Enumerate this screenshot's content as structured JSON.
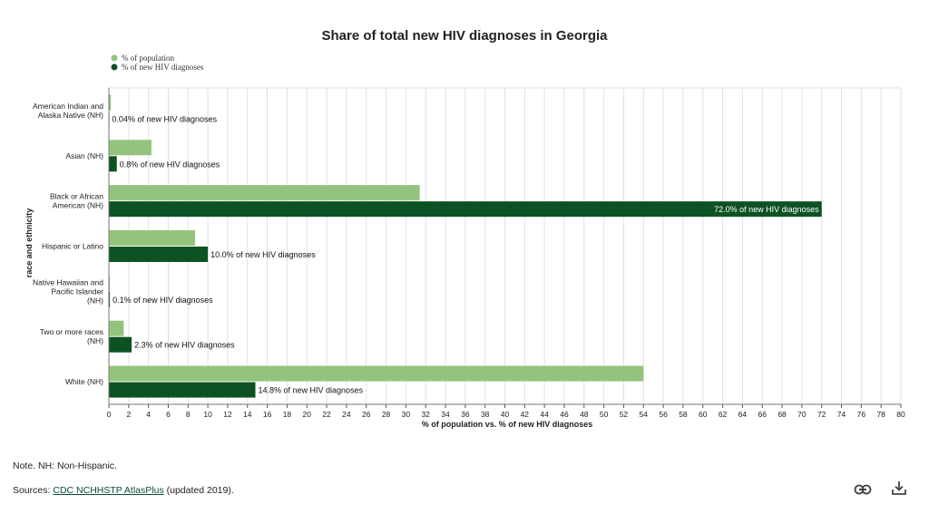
{
  "chart_data": {
    "type": "bar",
    "orientation": "horizontal",
    "title": "Share of total new HIV diagnoses in Georgia",
    "xlabel": "% of population vs. % of new HIV diagnoses",
    "ylabel": "race and ethnicity",
    "xlim": [
      0,
      80
    ],
    "xticks": [
      0,
      2,
      4,
      6,
      8,
      10,
      12,
      14,
      16,
      18,
      20,
      22,
      24,
      26,
      28,
      30,
      32,
      34,
      36,
      38,
      40,
      42,
      44,
      46,
      48,
      50,
      52,
      54,
      56,
      58,
      60,
      62,
      64,
      66,
      68,
      70,
      72,
      74,
      76,
      78,
      80
    ],
    "grid": true,
    "legend_position": "top-left",
    "categories": [
      [
        "American Indian and",
        "Alaska Native (NH)"
      ],
      [
        "Asian (NH)"
      ],
      [
        "Black or African",
        "American (NH)"
      ],
      [
        "Hispanic or Latino"
      ],
      [
        "Native Hawaiian and",
        "Pacific Islander",
        "(NH)"
      ],
      [
        "Two or more races",
        "(NH)"
      ],
      [
        "White (NH)"
      ]
    ],
    "series": [
      {
        "name": "% of population",
        "color": "#93c47d",
        "values": [
          0.2,
          4.3,
          31.4,
          8.7,
          0.1,
          1.5,
          54.0
        ]
      },
      {
        "name": "% of new HIV diagnoses",
        "color": "#0d5223",
        "values": [
          0.04,
          0.8,
          72.0,
          10.0,
          0.1,
          2.3,
          14.8
        ],
        "labels": [
          "0.04% of new HIV diagnoses",
          "0.8% of new HIV diagnoses",
          "72.0% of new HIV diagnoses",
          "10.0% of new HIV diagnoses",
          "0.1% of new HIV diagnoses",
          "2.3% of new HIV diagnoses",
          "14.8% of new HIV diagnoses"
        ]
      }
    ]
  },
  "footer": {
    "note": "Note. NH: Non-Hispanic.",
    "sources_prefix": "Sources: ",
    "sources_link": "CDC NCHHSTP AtlasPlus",
    "sources_suffix": " (updated 2019)."
  },
  "icons": {
    "link": "link-icon",
    "download": "download-icon"
  }
}
